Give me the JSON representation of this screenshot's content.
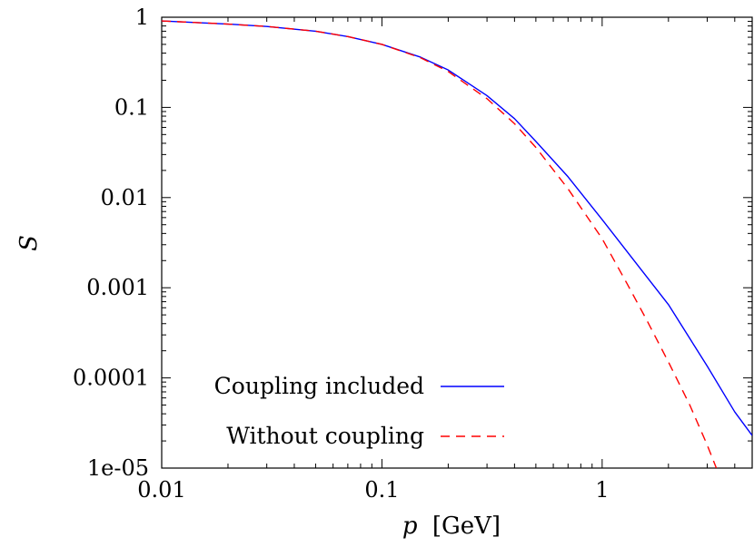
{
  "chart_data": {
    "type": "line",
    "xlabel_var": "p",
    "xlabel_unit": "[GeV]",
    "ylabel": "S",
    "x_scale": "log",
    "y_scale": "log",
    "xlim": [
      0.01,
      4.8
    ],
    "ylim": [
      1e-05,
      1
    ],
    "x_ticks": [
      {
        "value": 0.01,
        "label": "0.01"
      },
      {
        "value": 0.1,
        "label": "0.1"
      },
      {
        "value": 1,
        "label": "1"
      }
    ],
    "y_ticks": [
      {
        "value": 1,
        "label": "1"
      },
      {
        "value": 0.1,
        "label": "0.1"
      },
      {
        "value": 0.01,
        "label": "0.01"
      },
      {
        "value": 0.001,
        "label": "0.001"
      },
      {
        "value": 0.0001,
        "label": "0.0001"
      },
      {
        "value": 1e-05,
        "label": "1e-05"
      }
    ],
    "grid": false,
    "legend_position": "bottom-left",
    "series": [
      {
        "name": "Coupling included",
        "color": "#0000ff",
        "dash": "solid",
        "x": [
          0.01,
          0.02,
          0.03,
          0.05,
          0.07,
          0.1,
          0.15,
          0.2,
          0.3,
          0.4,
          0.5,
          0.7,
          1.0,
          1.5,
          2.0,
          3.0,
          4.0,
          4.8
        ],
        "y": [
          0.91,
          0.84,
          0.79,
          0.7,
          0.61,
          0.5,
          0.36,
          0.26,
          0.135,
          0.075,
          0.042,
          0.017,
          0.0057,
          0.0016,
          0.00065,
          0.000135,
          4.2e-05,
          2.3e-05
        ]
      },
      {
        "name": "Without coupling",
        "color": "#ff0000",
        "dash": "dashed",
        "x": [
          0.01,
          0.02,
          0.03,
          0.05,
          0.07,
          0.1,
          0.15,
          0.2,
          0.3,
          0.4,
          0.5,
          0.7,
          1.0,
          1.3,
          1.6,
          2.0,
          2.5,
          3.0,
          3.3
        ],
        "y": [
          0.91,
          0.84,
          0.79,
          0.7,
          0.61,
          0.5,
          0.355,
          0.25,
          0.125,
          0.066,
          0.036,
          0.0125,
          0.0035,
          0.0011,
          0.00043,
          0.00015,
          5e-05,
          1.8e-05,
          1e-05
        ]
      }
    ]
  }
}
